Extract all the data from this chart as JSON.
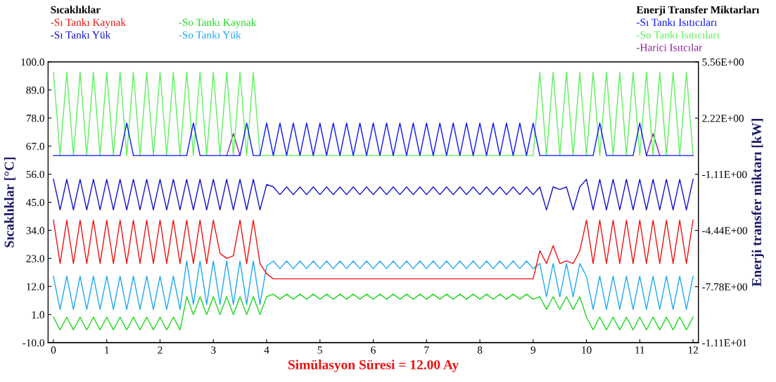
{
  "chart_data": {
    "type": "line",
    "legend_title": "Sıcaklıklar",
    "annotations": [
      "Enerji Transfer Miktarları"
    ],
    "xlabel": "Simülasyon Süresi = 12.00 Ay",
    "ylabel": "Sıcaklıklar [°C]",
    "y2label": "Enerji transfer miktarı [kW]",
    "x": [
      0,
      0.125,
      0.25,
      0.375,
      0.5,
      0.625,
      0.75,
      0.875,
      1,
      1.125,
      1.25,
      1.375,
      1.5,
      1.625,
      1.75,
      1.875,
      2,
      2.125,
      2.25,
      2.375,
      2.5,
      2.625,
      2.75,
      2.875,
      3,
      3.125,
      3.25,
      3.375,
      3.5,
      3.625,
      3.75,
      3.875,
      4,
      4.125,
      4.25,
      4.375,
      4.5,
      4.625,
      4.75,
      4.875,
      5,
      5.125,
      5.25,
      5.375,
      5.5,
      5.625,
      5.75,
      5.875,
      6,
      6.125,
      6.25,
      6.375,
      6.5,
      6.625,
      6.75,
      6.875,
      7,
      7.125,
      7.25,
      7.375,
      7.5,
      7.625,
      7.75,
      7.875,
      8,
      8.125,
      8.25,
      8.375,
      8.5,
      8.625,
      8.75,
      8.875,
      9,
      9.125,
      9.25,
      9.375,
      9.5,
      9.625,
      9.75,
      9.875,
      10,
      10.125,
      10.25,
      10.375,
      10.5,
      10.625,
      10.75,
      10.875,
      11,
      11.125,
      11.25,
      11.375,
      11.5,
      11.625,
      11.75,
      11.875,
      12
    ],
    "xlim": [
      -0.1,
      12.1
    ],
    "xticks": [
      0,
      1,
      2,
      3,
      4,
      5,
      6,
      7,
      8,
      9,
      10,
      11,
      12
    ],
    "ylim": [
      -10,
      100
    ],
    "yticks": [
      {
        "value": -10,
        "label": "-10.0"
      },
      {
        "value": 1,
        "label": "1.0"
      },
      {
        "value": 12,
        "label": "12.0"
      },
      {
        "value": 23,
        "label": "23.0"
      },
      {
        "value": 34,
        "label": "34.0"
      },
      {
        "value": 45,
        "label": "45.0"
      },
      {
        "value": 56,
        "label": "56.0"
      },
      {
        "value": 67,
        "label": "67.0"
      },
      {
        "value": 78,
        "label": "78.0"
      },
      {
        "value": 89,
        "label": "89.0"
      },
      {
        "value": 100,
        "label": "100.0"
      }
    ],
    "y2lim": [
      -11.1,
      5.56
    ],
    "y2ticks": [
      {
        "value": -11.1,
        "label": "-1.11E+01"
      },
      {
        "value": -7.78,
        "label": "-7.78E+00"
      },
      {
        "value": -4.44,
        "label": "-4.44E+00"
      },
      {
        "value": -1.11,
        "label": "-1.11E+00"
      },
      {
        "value": 2.22,
        "label": "2.22E+00"
      },
      {
        "value": 5.56,
        "label": "5.56E+00"
      }
    ],
    "grid": false,
    "legend": "top",
    "line_style": "solid",
    "series": [
      {
        "name": "-Sı Tankı Kaynak",
        "color": "#ee1111",
        "values": [
          38,
          21,
          38,
          21,
          38,
          21,
          38,
          21,
          38,
          21,
          38,
          21,
          38,
          21,
          38,
          21,
          38,
          21,
          38,
          21,
          38,
          21,
          38,
          21,
          38,
          25,
          23,
          24,
          38,
          21,
          38,
          21,
          17,
          15,
          15,
          15,
          15,
          15,
          15,
          15,
          15,
          15,
          15,
          15,
          15,
          15,
          15,
          15,
          15,
          15,
          15,
          15,
          15,
          15,
          15,
          15,
          15,
          15,
          15,
          15,
          15,
          15,
          15,
          15,
          15,
          15,
          15,
          15,
          15,
          15,
          15,
          15,
          15,
          26,
          21,
          28,
          21,
          22,
          21,
          26,
          38,
          21,
          38,
          21,
          38,
          21,
          38,
          21,
          38,
          21,
          38,
          21,
          38,
          21,
          38,
          21,
          38
        ]
      },
      {
        "name": "-Sı Tankı Yük",
        "color": "#1010cc",
        "values": [
          54,
          42,
          54,
          42,
          54,
          42,
          54,
          42,
          54,
          42,
          54,
          42,
          54,
          42,
          54,
          42,
          54,
          42,
          54,
          42,
          54,
          42,
          54,
          42,
          54,
          42,
          54,
          42,
          54,
          42,
          54,
          42,
          52,
          51,
          48,
          51,
          48,
          51,
          48,
          51,
          48,
          51,
          48,
          51,
          48,
          51,
          48,
          51,
          48,
          51,
          48,
          51,
          48,
          51,
          48,
          51,
          48,
          51,
          48,
          51,
          48,
          51,
          48,
          51,
          48,
          51,
          48,
          51,
          48,
          51,
          48,
          51,
          48,
          51,
          42,
          51,
          50,
          51,
          42,
          51,
          54,
          42,
          54,
          42,
          54,
          42,
          54,
          42,
          54,
          42,
          54,
          42,
          54,
          42,
          54,
          42,
          54
        ]
      },
      {
        "name": "-So Tankı Kaynak",
        "color": "#1fd81f",
        "values": [
          0,
          -5,
          0,
          -5,
          0,
          -5,
          0,
          -5,
          0,
          -5,
          0,
          -5,
          0,
          -5,
          0,
          -5,
          0,
          -5,
          0,
          -5,
          8,
          1,
          8,
          1,
          8,
          1,
          8,
          1,
          8,
          1,
          8,
          1,
          8,
          9,
          7,
          9,
          7,
          9,
          7,
          9,
          7,
          9,
          7,
          9,
          7,
          9,
          7,
          9,
          7,
          9,
          7,
          9,
          7,
          9,
          7,
          9,
          7,
          9,
          7,
          9,
          7,
          9,
          7,
          9,
          7,
          9,
          7,
          9,
          7,
          9,
          7,
          9,
          7,
          8,
          3,
          8,
          3,
          8,
          3,
          8,
          0,
          -5,
          0,
          -5,
          0,
          -5,
          0,
          -5,
          0,
          -5,
          0,
          -5,
          0,
          -5,
          0,
          -5,
          0
        ]
      },
      {
        "name": "-So Tankı Yük",
        "color": "#1ea8f0",
        "values": [
          16,
          3,
          16,
          3,
          16,
          3,
          16,
          3,
          16,
          3,
          16,
          3,
          16,
          3,
          16,
          3,
          16,
          3,
          16,
          3,
          22,
          5,
          22,
          5,
          22,
          5,
          22,
          5,
          22,
          5,
          22,
          5,
          20,
          22,
          19,
          22,
          19,
          22,
          19,
          22,
          19,
          22,
          19,
          22,
          19,
          22,
          19,
          22,
          19,
          22,
          19,
          22,
          19,
          22,
          19,
          22,
          19,
          22,
          19,
          22,
          19,
          22,
          19,
          22,
          19,
          22,
          19,
          22,
          19,
          22,
          19,
          22,
          19,
          21,
          8,
          21,
          8,
          21,
          8,
          21,
          16,
          3,
          16,
          3,
          16,
          3,
          16,
          3,
          16,
          3,
          16,
          3,
          16,
          3,
          16,
          3,
          16
        ]
      },
      {
        "name": "-Sı Tankı Isıtıcıları",
        "color": "#0a14f0",
        "axis": "y2",
        "values": [
          0,
          0,
          0,
          0,
          0,
          0,
          0,
          0,
          0,
          0,
          0,
          1.93,
          0,
          0,
          0,
          0,
          0,
          0,
          0,
          0,
          0,
          1.93,
          0,
          0,
          0,
          0,
          0,
          0,
          0,
          1.93,
          0,
          0,
          1.93,
          0,
          1.93,
          0,
          1.93,
          0,
          1.93,
          0,
          1.93,
          0,
          1.93,
          0,
          1.93,
          0,
          1.93,
          0,
          1.93,
          0,
          1.93,
          0,
          1.93,
          0,
          1.93,
          0,
          1.93,
          0,
          1.93,
          0,
          1.93,
          0,
          1.93,
          0,
          1.93,
          0,
          1.93,
          0,
          1.93,
          0,
          1.93,
          0,
          1.93,
          0,
          0,
          0,
          0,
          0,
          0,
          0,
          0,
          0,
          1.93,
          0,
          0,
          0,
          0,
          0,
          1.93,
          0,
          0,
          0,
          0,
          0,
          0,
          0,
          0
        ]
      },
      {
        "name": "-So Tankı Isıtıcıları",
        "color": "#5cf05c",
        "axis": "y2",
        "values": [
          4.95,
          0,
          4.95,
          0,
          4.95,
          0,
          4.95,
          0,
          4.95,
          0,
          4.95,
          0,
          4.95,
          0,
          4.95,
          0,
          4.95,
          0,
          4.95,
          0,
          4.95,
          0,
          4.95,
          0,
          4.95,
          0,
          4.95,
          0,
          4.95,
          0,
          4.95,
          0,
          0,
          0,
          0,
          0,
          0,
          0,
          0,
          0,
          0,
          0,
          0,
          0,
          0,
          0,
          0,
          0,
          0,
          0,
          0,
          0,
          0,
          0,
          0,
          0,
          0,
          0,
          0,
          0,
          0,
          0,
          0,
          0,
          0,
          0,
          0,
          0,
          0,
          0,
          0,
          0,
          0,
          4.95,
          0,
          4.95,
          0,
          4.95,
          0,
          4.95,
          0,
          4.95,
          0,
          4.95,
          0,
          4.95,
          0,
          4.95,
          0,
          4.95,
          0,
          4.95,
          0,
          4.95,
          0,
          4.95,
          0
        ]
      },
      {
        "name": "-Harici Isıtcılar",
        "color": "#9020a0",
        "axis": "y2",
        "values": [
          null,
          null,
          null,
          null,
          null,
          null,
          null,
          null,
          null,
          null,
          null,
          null,
          null,
          null,
          null,
          null,
          null,
          null,
          null,
          null,
          null,
          null,
          null,
          null,
          null,
          null,
          0,
          1.3,
          0,
          null,
          null,
          null,
          null,
          null,
          null,
          null,
          null,
          null,
          null,
          null,
          null,
          null,
          null,
          null,
          null,
          null,
          null,
          null,
          null,
          null,
          null,
          null,
          null,
          null,
          null,
          null,
          null,
          null,
          null,
          null,
          null,
          null,
          null,
          null,
          null,
          null,
          null,
          null,
          null,
          null,
          null,
          null,
          null,
          null,
          null,
          null,
          null,
          null,
          null,
          null,
          null,
          null,
          null,
          null,
          null,
          null,
          null,
          null,
          null,
          0,
          1.3,
          0,
          null,
          null,
          null,
          null,
          null
        ]
      }
    ]
  }
}
